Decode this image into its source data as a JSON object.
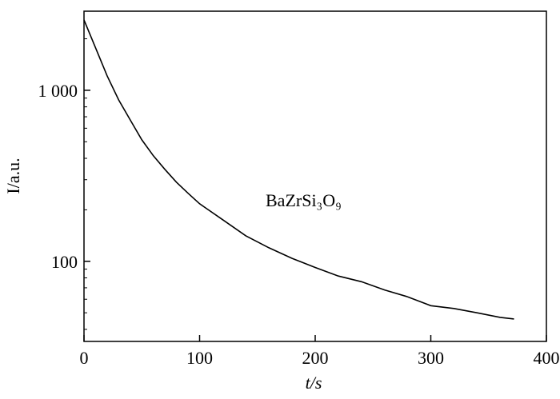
{
  "chart_data": {
    "type": "line",
    "x_label": "t/s",
    "y_label": "I/a.u.",
    "annotation": "BaZrSi₃O₉",
    "log_y": true,
    "color": "#000000",
    "x": [
      0,
      10,
      20,
      30,
      40,
      50,
      60,
      70,
      80,
      90,
      100,
      120,
      140,
      160,
      180,
      200,
      220,
      240,
      260,
      280,
      300,
      320,
      340,
      360,
      372
    ],
    "values": [
      2580,
      1770,
      1215,
      879,
      671,
      513,
      414,
      345,
      290,
      250,
      217,
      175,
      141,
      120,
      104,
      92,
      82,
      76,
      68,
      62,
      55,
      53,
      50,
      47,
      46
    ],
    "xlim": [
      0,
      400
    ],
    "xticks": [
      0,
      100,
      200,
      300,
      400
    ],
    "ylim": [
      34,
      2900
    ],
    "yticks": [
      100,
      {
        "value": 1000,
        "label": "1 000"
      }
    ],
    "yminor": [
      40,
      50,
      60,
      70,
      80,
      90,
      200,
      300,
      400,
      500,
      600,
      700,
      800,
      900,
      2000
    ]
  }
}
